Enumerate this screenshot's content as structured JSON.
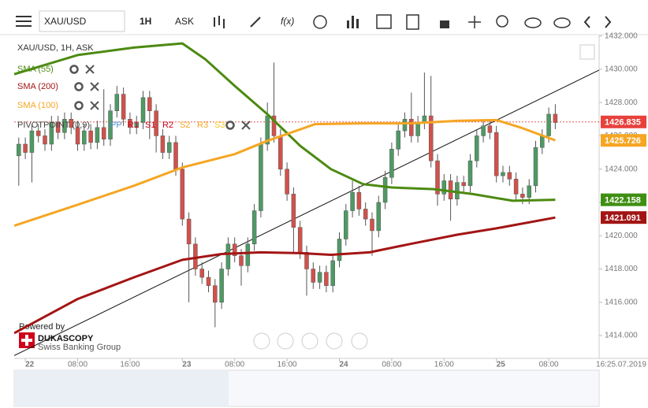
{
  "toolbar": {
    "symbol": "XAU/USD",
    "timeframe": "1H",
    "price_type": "ASK",
    "fx": "f(x)"
  },
  "branding": {
    "powered": "Powered by",
    "brand": "DUKASCOPY",
    "tagline": "Swiss Banking Group"
  },
  "chart_data": {
    "type": "candlestick",
    "title": "XAU/USD, 1H, ASK",
    "up_color": "#4e9a64",
    "down_color": "#d2514b",
    "xlim": [
      -1.7,
      87.7
    ],
    "ylim": [
      1412.63,
      1432.03
    ],
    "grid": false,
    "xticks": [
      {
        "value": 0,
        "label": "22"
      },
      {
        "value": 8,
        "label": "08:00"
      },
      {
        "value": 16,
        "label": "16:00"
      },
      {
        "value": 24,
        "label": "23"
      },
      {
        "value": 32,
        "label": "08:00"
      },
      {
        "value": 40,
        "label": "16:00"
      },
      {
        "value": 48,
        "label": "24"
      },
      {
        "value": 56,
        "label": "08:00"
      },
      {
        "value": 64,
        "label": "16:00"
      },
      {
        "value": 72,
        "label": "25"
      },
      {
        "value": 80,
        "label": "08:00"
      }
    ],
    "x_end_label": "16:25.07.2019",
    "yticks": [
      {
        "value": 1414,
        "label": "1414.000"
      },
      {
        "value": 1416,
        "label": "1416.000"
      },
      {
        "value": 1418,
        "label": "1418.000"
      },
      {
        "value": 1420,
        "label": "1420.000"
      },
      {
        "value": 1422,
        "label": "1422.000"
      },
      {
        "value": 1424,
        "label": "1424.000"
      },
      {
        "value": 1426,
        "label": "1426.000"
      },
      {
        "value": 1428,
        "label": "1428.000"
      },
      {
        "value": 1430,
        "label": "1430.000"
      },
      {
        "value": 1432,
        "label": "1432.000"
      }
    ],
    "x": [
      -1,
      0,
      1,
      2,
      3,
      4,
      5,
      6,
      7,
      8,
      9,
      10,
      11,
      12,
      13,
      14,
      15,
      16,
      17,
      18,
      19,
      20,
      21,
      22,
      23,
      24,
      25,
      26,
      27,
      28,
      29,
      30,
      31,
      32,
      33,
      34,
      35,
      36,
      37,
      38,
      39,
      40,
      41,
      42,
      43,
      44,
      45,
      46,
      47,
      48,
      49,
      50,
      51,
      52,
      53,
      54,
      55,
      56,
      57,
      58,
      59,
      60,
      61,
      62,
      63,
      64,
      65,
      66,
      67,
      68,
      69,
      70,
      71,
      72,
      73,
      74,
      75,
      76,
      77,
      78,
      79,
      80,
      81
    ],
    "open": [
      1424.8,
      1425.5,
      1425.0,
      1426.3,
      1426.0,
      1425.5,
      1426.8,
      1426.2,
      1427.0,
      1426.5,
      1425.5,
      1426.3,
      1425.6,
      1426.5,
      1425.8,
      1427.5,
      1428.5,
      1427.0,
      1426.5,
      1426.8,
      1428.3,
      1427.5,
      1426.0,
      1425.0,
      1425.6,
      1424.0,
      1421.0,
      1419.5,
      1418.0,
      1417.5,
      1417.0,
      1416.0,
      1418.0,
      1419.5,
      1418.8,
      1418.2,
      1419.5,
      1421.5,
      1425.5,
      1427.2,
      1426.0,
      1424.0,
      1422.5,
      1420.5,
      1419.0,
      1418.0,
      1417.2,
      1417.8,
      1417.0,
      1418.5,
      1419.8,
      1421.5,
      1422.6,
      1421.6,
      1421.0,
      1420.3,
      1422.0,
      1423.5,
      1425.2,
      1426.3,
      1427.0,
      1426.0,
      1426.8,
      1427.2,
      1424.5,
      1422.5,
      1423.3,
      1422.2,
      1423.2,
      1423.0,
      1424.5,
      1426.0,
      1426.6,
      1426.2,
      1423.6,
      1423.8,
      1423.4,
      1422.5,
      1422.3,
      1423.0,
      1425.3,
      1426.0,
      1427.3
    ],
    "high": [
      1425.9,
      1425.9,
      1426.7,
      1426.7,
      1426.4,
      1427.2,
      1427.2,
      1427.4,
      1427.4,
      1426.9,
      1426.7,
      1426.7,
      1426.9,
      1428.8,
      1427.9,
      1429.0,
      1428.9,
      1427.4,
      1427.2,
      1428.7,
      1428.7,
      1427.9,
      1426.4,
      1426.0,
      1426.0,
      1424.4,
      1421.4,
      1419.9,
      1418.4,
      1417.9,
      1417.4,
      1418.4,
      1419.9,
      1419.9,
      1419.2,
      1419.9,
      1421.9,
      1425.9,
      1428.0,
      1430.4,
      1426.4,
      1424.4,
      1422.9,
      1420.9,
      1419.4,
      1418.4,
      1418.2,
      1418.2,
      1418.9,
      1420.2,
      1421.9,
      1423.3,
      1423.0,
      1422.0,
      1421.4,
      1422.4,
      1423.9,
      1425.6,
      1426.7,
      1427.4,
      1428.6,
      1427.2,
      1429.8,
      1429.6,
      1424.9,
      1423.7,
      1423.7,
      1423.6,
      1423.6,
      1424.9,
      1426.4,
      1427.0,
      1427.0,
      1426.6,
      1424.2,
      1424.2,
      1423.8,
      1422.9,
      1423.4,
      1425.7,
      1426.4,
      1427.7,
      1427.9
    ],
    "low": [
      1423.0,
      1424.6,
      1423.2,
      1425.6,
      1425.1,
      1425.1,
      1425.8,
      1425.8,
      1426.1,
      1425.1,
      1425.1,
      1425.2,
      1425.2,
      1425.4,
      1425.4,
      1427.1,
      1426.6,
      1426.1,
      1426.1,
      1426.4,
      1425.8,
      1425.0,
      1424.6,
      1424.6,
      1423.6,
      1420.6,
      1416.0,
      1417.6,
      1417.1,
      1416.6,
      1414.5,
      1415.6,
      1417.6,
      1418.4,
      1417.0,
      1417.8,
      1419.1,
      1421.1,
      1425.1,
      1425.6,
      1423.6,
      1422.1,
      1419.0,
      1418.6,
      1416.4,
      1416.8,
      1416.8,
      1416.6,
      1416.6,
      1418.1,
      1419.4,
      1421.1,
      1421.2,
      1420.6,
      1418.8,
      1419.9,
      1421.6,
      1423.1,
      1424.8,
      1425.9,
      1425.6,
      1425.6,
      1426.4,
      1424.1,
      1421.8,
      1422.1,
      1420.9,
      1421.8,
      1422.6,
      1422.6,
      1424.1,
      1425.6,
      1425.8,
      1423.2,
      1423.2,
      1423.0,
      1422.1,
      1421.9,
      1421.9,
      1422.6,
      1424.9,
      1425.6,
      1426.4
    ],
    "close": [
      1425.5,
      1425.0,
      1426.3,
      1426.0,
      1425.5,
      1426.8,
      1426.2,
      1427.0,
      1426.5,
      1425.5,
      1426.3,
      1425.6,
      1426.5,
      1425.8,
      1427.5,
      1428.5,
      1427.0,
      1426.5,
      1426.8,
      1428.3,
      1427.5,
      1426.0,
      1425.0,
      1425.6,
      1424.0,
      1421.0,
      1419.5,
      1418.0,
      1417.5,
      1417.0,
      1416.0,
      1418.0,
      1419.5,
      1418.8,
      1418.2,
      1419.5,
      1421.5,
      1425.5,
      1427.2,
      1426.0,
      1424.0,
      1422.5,
      1420.5,
      1419.0,
      1418.0,
      1417.2,
      1417.8,
      1417.0,
      1418.5,
      1419.8,
      1421.5,
      1422.6,
      1421.6,
      1421.0,
      1420.3,
      1422.0,
      1423.5,
      1425.2,
      1426.3,
      1427.0,
      1426.0,
      1426.8,
      1427.2,
      1424.5,
      1422.5,
      1423.3,
      1422.2,
      1423.2,
      1423.0,
      1424.5,
      1426.0,
      1426.6,
      1426.2,
      1423.6,
      1423.8,
      1423.4,
      1422.5,
      1422.3,
      1423.0,
      1425.3,
      1426.0,
      1427.3,
      1426.8
    ],
    "series": [
      {
        "name": "SMA (55)",
        "color": "#4c8a12",
        "x": [
          -1.7,
          8,
          16.6,
          24,
          27.5,
          32,
          37,
          42,
          46.7,
          51.6,
          56,
          62.4,
          68.4,
          74.5,
          81
        ],
        "values": [
          1429.7,
          1430.85,
          1431.3,
          1431.55,
          1430.6,
          1429.0,
          1427.3,
          1425.4,
          1424.0,
          1423.1,
          1422.9,
          1422.8,
          1422.5,
          1422.1,
          1422.158
        ]
      },
      {
        "name": "SMA (200)",
        "color": "#a31515",
        "x": [
          -1.7,
          8,
          16.6,
          24,
          30,
          36,
          42,
          46.7,
          52.6,
          58.8,
          66,
          72,
          81
        ],
        "values": [
          1414.15,
          1416.2,
          1417.5,
          1418.55,
          1418.9,
          1419.0,
          1418.95,
          1418.85,
          1419.0,
          1419.5,
          1420.06,
          1420.44,
          1421.091
        ]
      },
      {
        "name": "SMA (100)",
        "color": "#f5a623",
        "x": [
          -1.7,
          8,
          16.6,
          24,
          32,
          37,
          44.3,
          51.6,
          59,
          66,
          72,
          75.7,
          81
        ],
        "values": [
          1420.6,
          1421.86,
          1423.0,
          1424.1,
          1424.9,
          1425.7,
          1426.7,
          1426.75,
          1426.75,
          1426.9,
          1426.95,
          1426.5,
          1425.726
        ]
      }
    ],
    "trend_line": {
      "color": "#111111",
      "x": [
        -1.7,
        87.7
      ],
      "values": [
        1412.8,
        1429.95
      ]
    },
    "pivot": {
      "name": "PIVOTPOINT (0,9)",
      "parts": [
        {
          "name": "PP",
          "color": "#4a90d9"
        },
        {
          "name": "R1",
          "color": "#d0021b"
        },
        {
          "name": "S1",
          "color": "#d0021b"
        },
        {
          "name": "R2",
          "color": "#d0021b"
        },
        {
          "name": "S2",
          "color": "#f5a623"
        },
        {
          "name": "R3",
          "color": "#f5a623"
        },
        {
          "name": "S3",
          "color": "#f5c623"
        }
      ]
    },
    "price_tags": [
      {
        "value": 1426.835,
        "color": "#e8413c"
      },
      {
        "value": 1425.726,
        "color": "#f5a623"
      },
      {
        "value": 1422.158,
        "color": "#3f8f12"
      },
      {
        "value": 1421.091,
        "color": "#a31515"
      }
    ]
  }
}
